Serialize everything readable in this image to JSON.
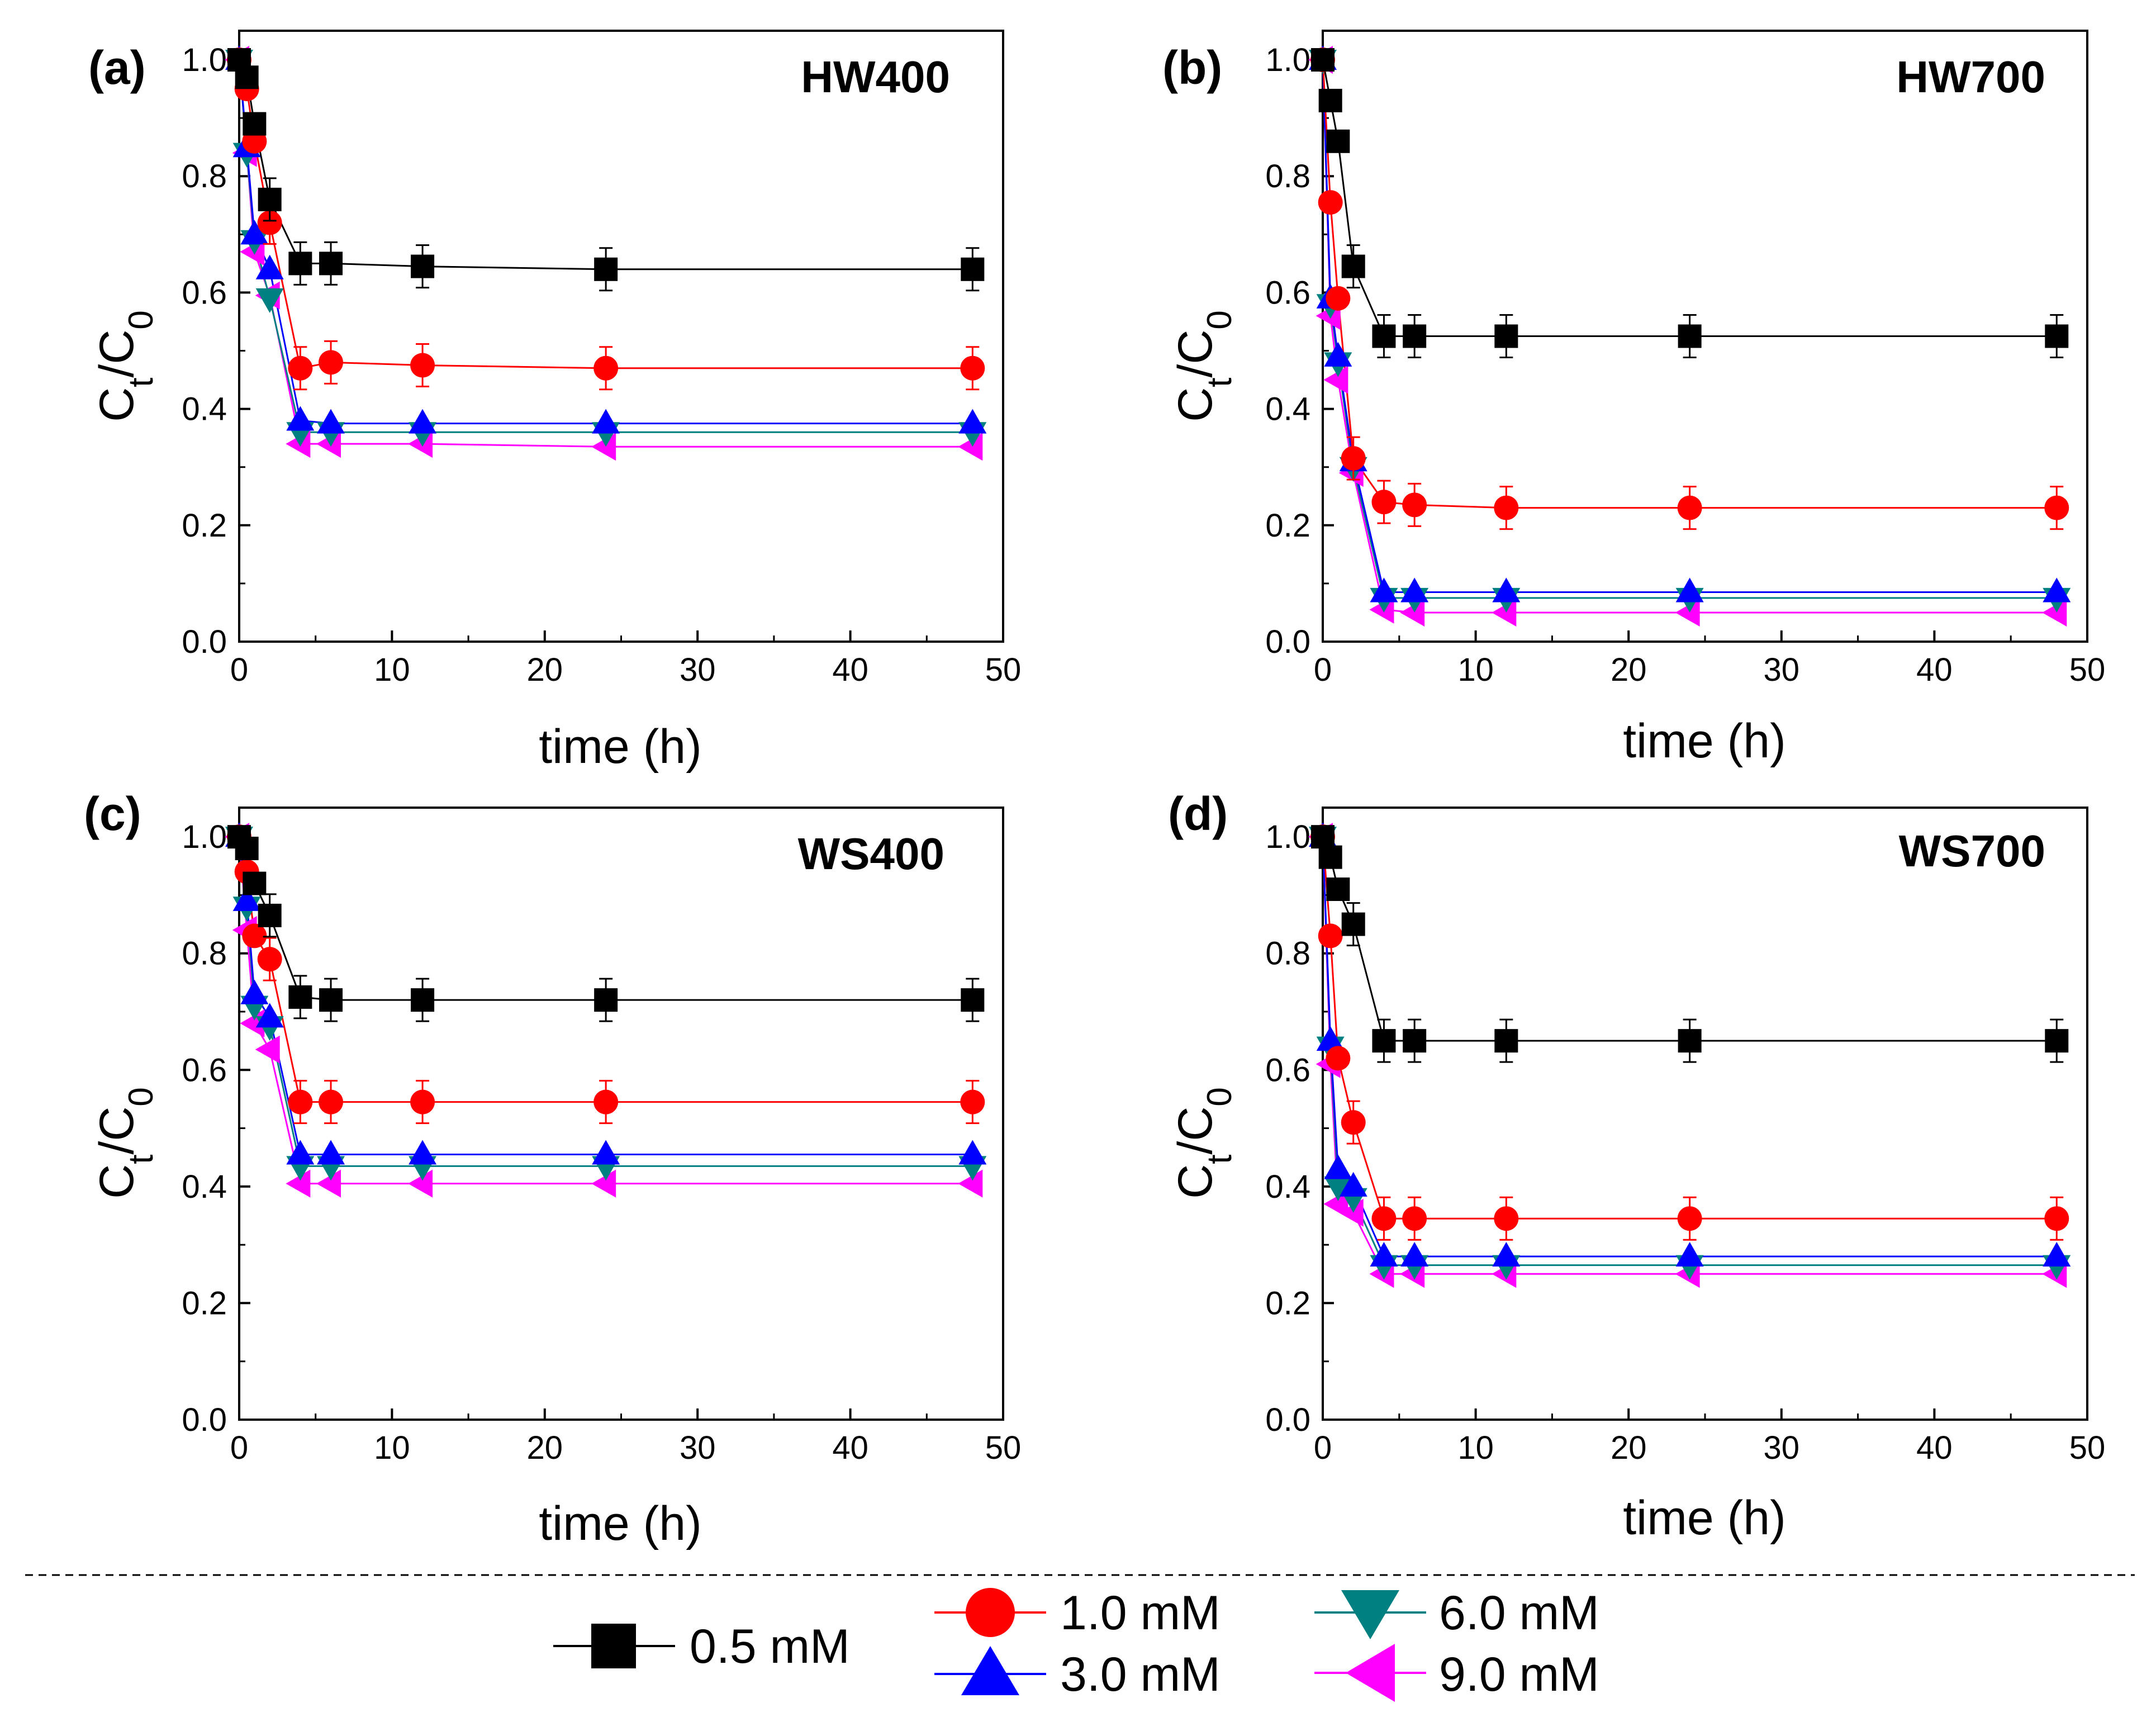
{
  "figure": {
    "legend_entries": [
      {
        "label": "0.5 mM",
        "color": "#000000",
        "marker": "square"
      },
      {
        "label": "1.0 mM",
        "color": "#ff0000",
        "marker": "circle"
      },
      {
        "label": "3.0 mM",
        "color": "#0000ff",
        "marker": "triangle-up"
      },
      {
        "label": "6.0 mM",
        "color": "#008080",
        "marker": "triangle-down"
      },
      {
        "label": "9.0 mM",
        "color": "#ff00ff",
        "marker": "triangle-left"
      }
    ]
  },
  "chart_data": [
    {
      "type": "line",
      "panel_label": "(a)",
      "title": "HW400",
      "xlabel": "time (h)",
      "ylabel": "Ct/C0",
      "ylabel_main": "C",
      "ylabel_sub1": "t",
      "ylabel_slash": "/C",
      "ylabel_sub2": "0",
      "xlim": [
        0,
        50
      ],
      "ylim": [
        0,
        1.05
      ],
      "xticks": [
        "0",
        "10",
        "20",
        "30",
        "40",
        "50"
      ],
      "yticks": [
        "0.0",
        "0.2",
        "0.4",
        "0.6",
        "0.8",
        "1.0"
      ],
      "x": [
        0,
        0.5,
        1,
        2,
        4,
        6,
        12,
        24,
        48
      ],
      "series": [
        {
          "name": "0.5 mM",
          "values": [
            1.0,
            0.97,
            0.89,
            0.76,
            0.65,
            0.65,
            0.645,
            0.64,
            0.64
          ]
        },
        {
          "name": "1.0 mM",
          "values": [
            1.0,
            0.95,
            0.86,
            0.72,
            0.47,
            0.48,
            0.475,
            0.47,
            0.47
          ]
        },
        {
          "name": "3.0 mM",
          "values": [
            1.0,
            0.85,
            0.7,
            0.64,
            0.38,
            0.375,
            0.375,
            0.375,
            0.375
          ]
        },
        {
          "name": "6.0 mM",
          "values": [
            1.0,
            0.84,
            0.69,
            0.59,
            0.36,
            0.36,
            0.36,
            0.36,
            0.36
          ]
        },
        {
          "name": "9.0 mM",
          "values": [
            1.0,
            0.84,
            0.67,
            0.595,
            0.34,
            0.34,
            0.34,
            0.335,
            0.335
          ]
        }
      ]
    },
    {
      "type": "line",
      "panel_label": "(b)",
      "title": "HW700",
      "xlabel": "time (h)",
      "ylabel": "Ct/C0",
      "ylabel_main": "C",
      "ylabel_sub1": "t",
      "ylabel_slash": "/C",
      "ylabel_sub2": "0",
      "xlim": [
        0,
        50
      ],
      "ylim": [
        0,
        1.05
      ],
      "xticks": [
        "0",
        "10",
        "20",
        "30",
        "40",
        "50"
      ],
      "yticks": [
        "0.0",
        "0.2",
        "0.4",
        "0.6",
        "0.8",
        "1.0"
      ],
      "x": [
        0,
        0.5,
        1,
        2,
        4,
        6,
        12,
        24,
        48
      ],
      "series": [
        {
          "name": "0.5 mM",
          "values": [
            1.0,
            0.93,
            0.86,
            0.645,
            0.525,
            0.525,
            0.525,
            0.525,
            0.525
          ]
        },
        {
          "name": "1.0 mM",
          "values": [
            1.0,
            0.755,
            0.59,
            0.315,
            0.24,
            0.235,
            0.23,
            0.23,
            0.23
          ]
        },
        {
          "name": "3.0 mM",
          "values": [
            1.0,
            0.59,
            0.49,
            0.31,
            0.085,
            0.085,
            0.085,
            0.085,
            0.085
          ]
        },
        {
          "name": "6.0 mM",
          "values": [
            1.0,
            0.58,
            0.48,
            0.3,
            0.075,
            0.075,
            0.075,
            0.075,
            0.075
          ]
        },
        {
          "name": "9.0 mM",
          "values": [
            1.0,
            0.56,
            0.45,
            0.29,
            0.055,
            0.05,
            0.05,
            0.05,
            0.05
          ]
        }
      ]
    },
    {
      "type": "line",
      "panel_label": "(c)",
      "title": "WS400",
      "xlabel": "time (h)",
      "ylabel": "Ct/C0",
      "ylabel_main": "C",
      "ylabel_sub1": "t",
      "ylabel_slash": "/C",
      "ylabel_sub2": "0",
      "xlim": [
        0,
        50
      ],
      "ylim": [
        0,
        1.05
      ],
      "xticks": [
        "0",
        "10",
        "20",
        "30",
        "40",
        "50"
      ],
      "yticks": [
        "0.0",
        "0.2",
        "0.4",
        "0.6",
        "0.8",
        "1.0"
      ],
      "x": [
        0,
        0.5,
        1,
        2,
        4,
        6,
        12,
        24,
        48
      ],
      "series": [
        {
          "name": "0.5 mM",
          "values": [
            1.0,
            0.98,
            0.92,
            0.865,
            0.725,
            0.72,
            0.72,
            0.72,
            0.72
          ]
        },
        {
          "name": "1.0 mM",
          "values": [
            1.0,
            0.94,
            0.83,
            0.79,
            0.545,
            0.545,
            0.545,
            0.545,
            0.545
          ]
        },
        {
          "name": "3.0 mM",
          "values": [
            1.0,
            0.89,
            0.73,
            0.69,
            0.455,
            0.455,
            0.455,
            0.455,
            0.455
          ]
        },
        {
          "name": "6.0 mM",
          "values": [
            1.0,
            0.88,
            0.71,
            0.675,
            0.435,
            0.435,
            0.435,
            0.435,
            0.435
          ]
        },
        {
          "name": "9.0 mM",
          "values": [
            1.0,
            0.84,
            0.68,
            0.635,
            0.405,
            0.405,
            0.405,
            0.405,
            0.405
          ]
        }
      ]
    },
    {
      "type": "line",
      "panel_label": "(d)",
      "title": "WS700",
      "xlabel": "time (h)",
      "ylabel": "Ct/C0",
      "ylabel_main": "C",
      "ylabel_sub1": "t",
      "ylabel_slash": "/C",
      "ylabel_sub2": "0",
      "xlim": [
        0,
        50
      ],
      "ylim": [
        0,
        1.05
      ],
      "xticks": [
        "0",
        "10",
        "20",
        "30",
        "40",
        "50"
      ],
      "yticks": [
        "0.0",
        "0.2",
        "0.4",
        "0.6",
        "0.8",
        "1.0"
      ],
      "x": [
        0,
        0.5,
        1,
        2,
        4,
        6,
        12,
        24,
        48
      ],
      "series": [
        {
          "name": "0.5 mM",
          "values": [
            1.0,
            0.965,
            0.91,
            0.85,
            0.65,
            0.65,
            0.65,
            0.65,
            0.65
          ]
        },
        {
          "name": "1.0 mM",
          "values": [
            1.0,
            0.83,
            0.62,
            0.51,
            0.345,
            0.345,
            0.345,
            0.345,
            0.345
          ]
        },
        {
          "name": "3.0 mM",
          "values": [
            1.0,
            0.65,
            0.43,
            0.4,
            0.28,
            0.28,
            0.28,
            0.28,
            0.28
          ]
        },
        {
          "name": "6.0 mM",
          "values": [
            1.0,
            0.64,
            0.4,
            0.38,
            0.265,
            0.265,
            0.265,
            0.265,
            0.265
          ]
        },
        {
          "name": "9.0 mM",
          "values": [
            1.0,
            0.61,
            0.37,
            0.355,
            0.25,
            0.25,
            0.25,
            0.25,
            0.25
          ]
        }
      ]
    }
  ]
}
